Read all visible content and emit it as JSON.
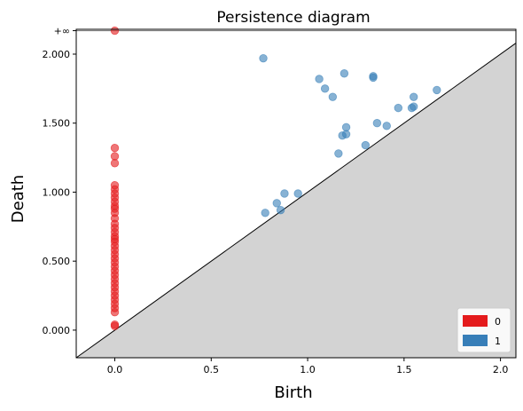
{
  "chart_data": {
    "type": "scatter",
    "title": "Persistence diagram",
    "xlabel": "Birth",
    "ylabel": "Death",
    "xlim": [
      -0.2,
      2.08
    ],
    "ylim": [
      -0.2,
      2.18
    ],
    "infinity_value": 2.17,
    "infinity_label": "+∞",
    "x_ticks": [
      {
        "value": 0.0,
        "label": "0.0"
      },
      {
        "value": 0.5,
        "label": "0.5"
      },
      {
        "value": 1.0,
        "label": "1.0"
      },
      {
        "value": 1.5,
        "label": "1.5"
      },
      {
        "value": 2.0,
        "label": "2.0"
      }
    ],
    "y_ticks": [
      {
        "value": 0.0,
        "label": "0.000"
      },
      {
        "value": 0.5,
        "label": "0.500"
      },
      {
        "value": 1.0,
        "label": "1.000"
      },
      {
        "value": 1.5,
        "label": "1.500"
      },
      {
        "value": 2.0,
        "label": "2.000"
      }
    ],
    "legend_position": "bottom-right",
    "series": [
      {
        "name": "0",
        "color": "#e41a1c",
        "points": [
          [
            0,
            2.17
          ],
          [
            0,
            1.32
          ],
          [
            0,
            1.26
          ],
          [
            0,
            1.21
          ],
          [
            0,
            1.05
          ],
          [
            0,
            1.02
          ],
          [
            0,
            0.99
          ],
          [
            0,
            0.96
          ],
          [
            0,
            0.93
          ],
          [
            0,
            0.9
          ],
          [
            0,
            0.88
          ],
          [
            0,
            0.85
          ],
          [
            0,
            0.81
          ],
          [
            0,
            0.77
          ],
          [
            0,
            0.74
          ],
          [
            0,
            0.71
          ],
          [
            0,
            0.68
          ],
          [
            0,
            0.66
          ],
          [
            0,
            0.64
          ],
          [
            0,
            0.61
          ],
          [
            0,
            0.58
          ],
          [
            0,
            0.55
          ],
          [
            0,
            0.52
          ],
          [
            0,
            0.49
          ],
          [
            0,
            0.46
          ],
          [
            0,
            0.43
          ],
          [
            0,
            0.4
          ],
          [
            0,
            0.37
          ],
          [
            0,
            0.34
          ],
          [
            0,
            0.31
          ],
          [
            0,
            0.28
          ],
          [
            0,
            0.25
          ],
          [
            0,
            0.22
          ],
          [
            0,
            0.19
          ],
          [
            0,
            0.16
          ],
          [
            0,
            0.13
          ],
          [
            0,
            0.04
          ],
          [
            0,
            0.03
          ]
        ]
      },
      {
        "name": "1",
        "color": "#377eb8",
        "points": [
          [
            0.77,
            1.97
          ],
          [
            0.78,
            0.85
          ],
          [
            0.84,
            0.92
          ],
          [
            0.86,
            0.87
          ],
          [
            0.88,
            0.99
          ],
          [
            0.95,
            0.99
          ],
          [
            1.06,
            1.82
          ],
          [
            1.09,
            1.75
          ],
          [
            1.13,
            1.69
          ],
          [
            1.16,
            1.28
          ],
          [
            1.18,
            1.41
          ],
          [
            1.19,
            1.86
          ],
          [
            1.2,
            1.47
          ],
          [
            1.2,
            1.42
          ],
          [
            1.3,
            1.34
          ],
          [
            1.34,
            1.84
          ],
          [
            1.34,
            1.83
          ],
          [
            1.36,
            1.5
          ],
          [
            1.41,
            1.48
          ],
          [
            1.47,
            1.61
          ],
          [
            1.54,
            1.61
          ],
          [
            1.55,
            1.62
          ],
          [
            1.55,
            1.69
          ],
          [
            1.67,
            1.74
          ]
        ]
      }
    ]
  }
}
